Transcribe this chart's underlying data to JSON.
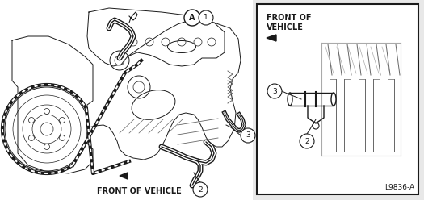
{
  "bg_color": "#e8e8e8",
  "main_bg": "#ffffff",
  "inset_bg": "#ffffff",
  "border_color": "#000000",
  "line_color": "#1a1a1a",
  "gray_color": "#666666",
  "light_gray": "#aaaaaa",
  "diagram_code": "L9836-A",
  "front_vehicle_main": "FRONT OF VEHICLE",
  "front_vehicle_inset_line1": "FRONT OF",
  "front_vehicle_inset_line2": "VEHICLE",
  "label_A": "A",
  "label_1": "1",
  "label_2": "2",
  "label_3": "3",
  "fig_width": 5.25,
  "fig_height": 2.48,
  "dpi": 100
}
